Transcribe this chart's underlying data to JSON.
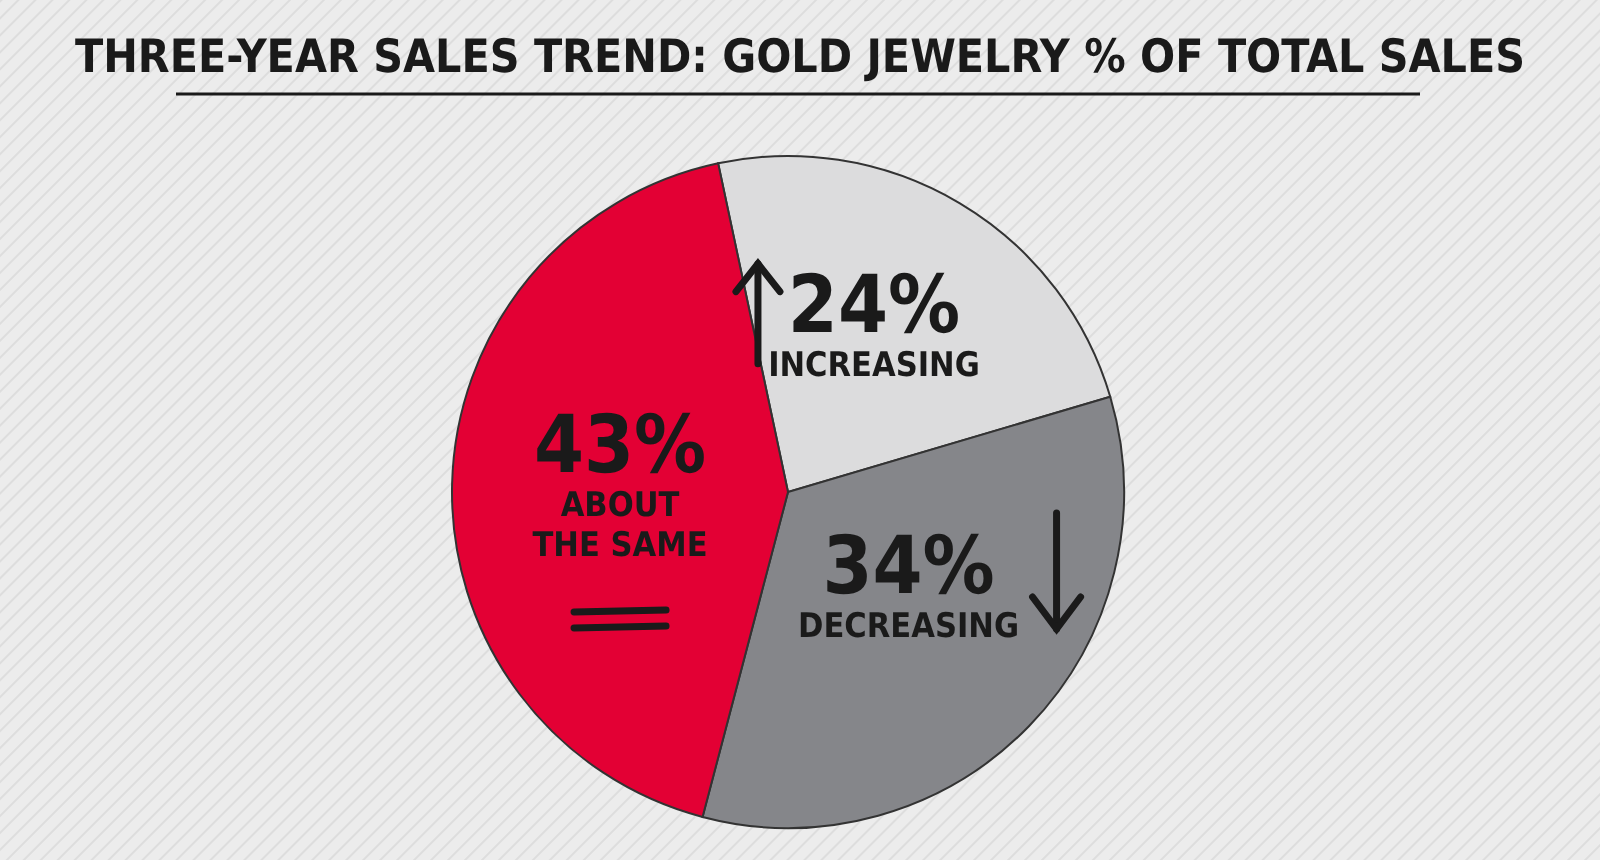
{
  "chart_data": {
    "type": "pie",
    "title": "THREE-YEAR SALES TREND: GOLD JEWELRY % OF TOTAL SALES",
    "categories": [
      "INCREASING",
      "DECREASING",
      "ABOUT THE SAME"
    ],
    "values": [
      24,
      34,
      43
    ],
    "colors": [
      "#dcdcdd",
      "#85868a",
      "#e30034"
    ],
    "value_labels": [
      "24%",
      "34%",
      "43%"
    ]
  }
}
